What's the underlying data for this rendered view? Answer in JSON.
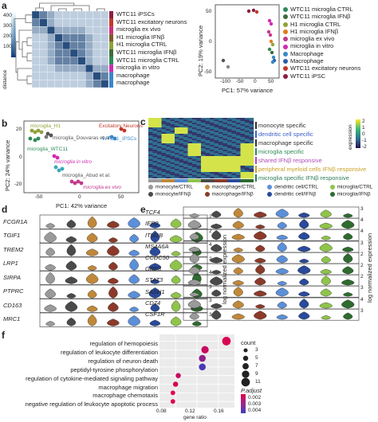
{
  "panel_a": {
    "label": "a",
    "colorbar_ticks": [
      "400",
      "300",
      "200",
      "100"
    ],
    "colorbar_title": "distance",
    "heatmap_rows": [
      "WTC11 iPSCs",
      "WTC11 excitatory neurons",
      "microglia ex vivo",
      "H1 microglia IFNβ",
      "H1 microglia CTRL",
      "WTC11 microglia IFNβ",
      "WTC11 microglia CTRL",
      "microglia in vitro",
      "macrophage",
      "macrophage"
    ],
    "row_colors": [
      "#8b1e3f",
      "#c0392b",
      "#d02c7c",
      "#7b5c2e",
      "#8fa23a",
      "#3d6b3a",
      "#2e8b57",
      "#d02cb2",
      "#3a87c8",
      "#3a87c8"
    ],
    "pca_xlabel": "PC1: 57% variance",
    "pca_ylabel": "PC2: 19% variance",
    "pca_xticks": [
      "-100",
      "-50",
      "0",
      "50"
    ],
    "pca_yticks": [
      "50",
      "0",
      "-50"
    ],
    "legend": [
      {
        "label": "WTC11 microglia CTRL",
        "color": "#2e8b57"
      },
      {
        "label": "WTC11 microglia IFNβ",
        "color": "#3d6b3a"
      },
      {
        "label": "H1 microglia CTRL",
        "color": "#8fa23a"
      },
      {
        "label": "H1 microglia IFNβ",
        "color": "#e07b20"
      },
      {
        "label": "microglia ex vivo",
        "color": "#c23a8a"
      },
      {
        "label": "microglia in vitro",
        "color": "#d02cb2"
      },
      {
        "label": "Macrophage",
        "color": "#3a87c8"
      },
      {
        "label": "Macrophage",
        "color": "#2a5fa8"
      },
      {
        "label": "WTC11 excitatory neurons",
        "color": "#c0392b"
      },
      {
        "label": "WTC11 iPSC",
        "color": "#8b1e3f"
      }
    ]
  },
  "panel_b": {
    "label": "b",
    "xlabel": "PC1: 42% variance",
    "ylabel": "PC2: 24% variance",
    "xticks": [
      "-50",
      "0",
      "50"
    ],
    "yticks": [
      "20",
      "0",
      "-20"
    ],
    "annotations": [
      {
        "text": "microglia_H1",
        "color": "#8fa23a"
      },
      {
        "text": "Excitatory Neurons",
        "color": "#c0392b"
      },
      {
        "text": "microglia_Douvaras et al.",
        "color": "#555555"
      },
      {
        "text": "WTC11_iPSCs",
        "color": "#3a87c8"
      },
      {
        "text": "microglia_WTC11",
        "color": "#2e8b57"
      },
      {
        "text": "microglia in vitro",
        "color": "#d02cb2"
      },
      {
        "text": "microglia_Abud et al.",
        "color": "#555555"
      },
      {
        "text": "microglia ex vivo",
        "color": "#c23a8a"
      }
    ]
  },
  "panel_c": {
    "label": "c",
    "clusters": [
      {
        "text": "monocyte specific",
        "color": "#333333"
      },
      {
        "text": "dendritic cell specific",
        "color": "#3a5fc8"
      },
      {
        "text": "macrophage specific",
        "color": "#333333"
      },
      {
        "text": "microglia specific",
        "color": "#2e8b57"
      },
      {
        "text": "shared IFNβ responsive",
        "color": "#b04ab8"
      },
      {
        "text": "peripheral myeloid cells IFNβ responsive",
        "color": "#c9a227"
      },
      {
        "text": "microglia specific IFNβ responsive",
        "color": "#2e7b5a"
      }
    ],
    "expr_title": "expression",
    "expr_ticks": [
      "2",
      "1",
      "0",
      "-1",
      "-2"
    ],
    "legend": [
      {
        "label": "monocyte/CTRL",
        "color": "#9a9a9a"
      },
      {
        "label": "macrophage/CTRL",
        "color": "#c0883a"
      },
      {
        "label": "dendritic cell/CTRL",
        "color": "#5b8fd8"
      },
      {
        "label": "microglia/CTRL",
        "color": "#8fc44a"
      },
      {
        "label": "monocyte/IFNβ",
        "color": "#4a4a4a"
      },
      {
        "label": "macrophage/IFNβ",
        "color": "#8b3a2a"
      },
      {
        "label": "dendritic cell/IFNβ",
        "color": "#2a4a9a"
      },
      {
        "label": "microglia/IFNβ",
        "color": "#2e6b2e"
      }
    ]
  },
  "panel_d": {
    "label": "d",
    "genes": [
      "FCGR1A",
      "TGIF1",
      "TREM2",
      "LRP1",
      "SIRPA",
      "PTPRC",
      "CD163",
      "MRC1"
    ],
    "ymax": [
      "2",
      "2",
      "4",
      "2",
      "4",
      "3",
      "3",
      "3"
    ],
    "ylabel": "log normalized expression"
  },
  "panel_e": {
    "label": "e",
    "genes": [
      "TCF4",
      "IER2",
      "ITM2B",
      "MS4A6A",
      "CCDC50",
      "GBP3",
      "STAT3",
      "SASH1",
      "CD74",
      "CSF1R"
    ],
    "ymax": [
      "3",
      "4",
      "4",
      "3",
      "2",
      "2",
      "2",
      "3",
      "4",
      "3"
    ],
    "ylabel": "log normalized expression"
  },
  "panel_f": {
    "label": "f",
    "xlabel": "gene ratio",
    "xticks": [
      "0.08",
      "0.12",
      "0.16"
    ],
    "count_title": "count",
    "count_ticks": [
      "3",
      "5",
      "7",
      "9",
      "11"
    ],
    "padj_title": "P.adjust",
    "padj_ticks": [
      "0.002",
      "0.003",
      "0.004"
    ],
    "chart_data": {
      "type": "scatter",
      "title": "",
      "xlabel": "gene ratio",
      "ylabel": "",
      "xlim": [
        0.05,
        0.19
      ],
      "terms": [
        "regulation of hemopoiesis",
        "regulation of leukocyte differentiation",
        "regulation of neuron death",
        "peptidyl-tyrosine phosphorylation",
        "regulation of cytokine-mediated signaling pathway",
        "macrophage migration",
        "macrophage chemotaxis",
        "negative regulation of leukocyte apoptotic process"
      ],
      "gene_ratio": [
        0.175,
        0.135,
        0.13,
        0.13,
        0.085,
        0.08,
        0.075,
        0.075
      ],
      "count": [
        11,
        9,
        8,
        8,
        5,
        5,
        4,
        4
      ],
      "padj": [
        0.0012,
        0.0015,
        0.0025,
        0.0038,
        0.0015,
        0.0012,
        0.001,
        0.001
      ]
    }
  }
}
